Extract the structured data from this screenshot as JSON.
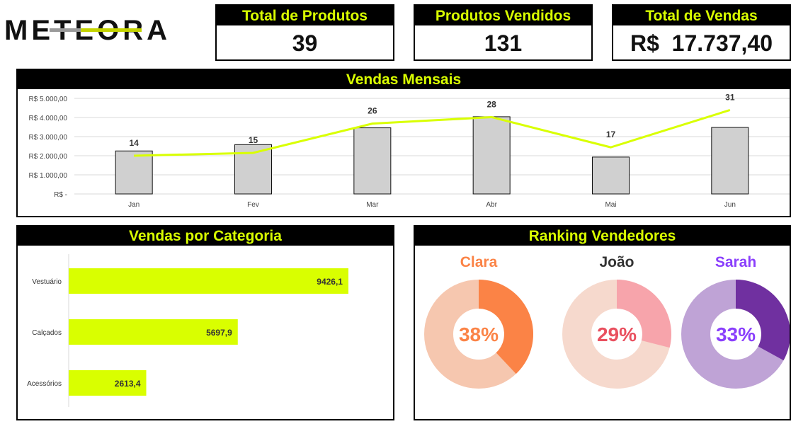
{
  "brand": {
    "name": "METEORA"
  },
  "kpis": [
    {
      "label": "Total de Produtos",
      "value": "39"
    },
    {
      "label": "Produtos Vendidos",
      "value": "131"
    },
    {
      "label": "Total de Vendas",
      "value": "R$  17.737,40"
    }
  ],
  "monthly": {
    "title": "Vendas Mensais",
    "y_ticks": [
      "R$ -",
      "R$ 1.000,00",
      "R$ 2.000,00",
      "R$ 3.000,00",
      "R$ 4.000,00",
      "R$ 5.000,00"
    ]
  },
  "category": {
    "title": "Vendas por Categoria"
  },
  "ranking": {
    "title": "Ranking Vendedores"
  },
  "chart_data": [
    {
      "type": "bar",
      "title": "Vendas Mensais",
      "categories": [
        "Jan",
        "Fev",
        "Mar",
        "Abr",
        "Mai",
        "Jun"
      ],
      "ylim": [
        0,
        5000
      ],
      "grid": true,
      "series": [
        {
          "type": "bar",
          "values": [
            2250,
            2580,
            3460,
            4040,
            1930,
            3480
          ],
          "color": "#d0d0d0"
        },
        {
          "type": "line",
          "values": [
            2000,
            2150,
            3680,
            4020,
            2440,
            4390
          ],
          "color": "#d9ff00"
        }
      ],
      "data_labels": [
        "14",
        "15",
        "26",
        "28",
        "17",
        "31"
      ]
    },
    {
      "type": "bar",
      "orientation": "horizontal",
      "title": "Vendas por Categoria",
      "categories": [
        "Vestuário",
        "Calçados",
        "Acessórios"
      ],
      "values": [
        9426.1,
        5697.9,
        2613.4
      ],
      "value_labels": [
        "9426,1",
        "5697,9",
        "2613,4"
      ],
      "xlim": [
        0,
        10500
      ],
      "color": "#d9ff00"
    },
    {
      "type": "pie",
      "title": "Ranking Vendedores",
      "slices": [
        {
          "name": "Clara",
          "percent": 38,
          "label": "38%",
          "color": "#fb8346",
          "track": "#f6c7af",
          "text": "#fb8346"
        },
        {
          "name": "João",
          "percent": 29,
          "label": "29%",
          "color": "#f7a4ab",
          "track": "#f6d9cd",
          "text": "#e9505f",
          "name_color": "#333333"
        },
        {
          "name": "Sarah",
          "percent": 33,
          "label": "33%",
          "color": "#7030a0",
          "track": "#bfa3d6",
          "text": "#8a3ffc"
        }
      ]
    }
  ]
}
